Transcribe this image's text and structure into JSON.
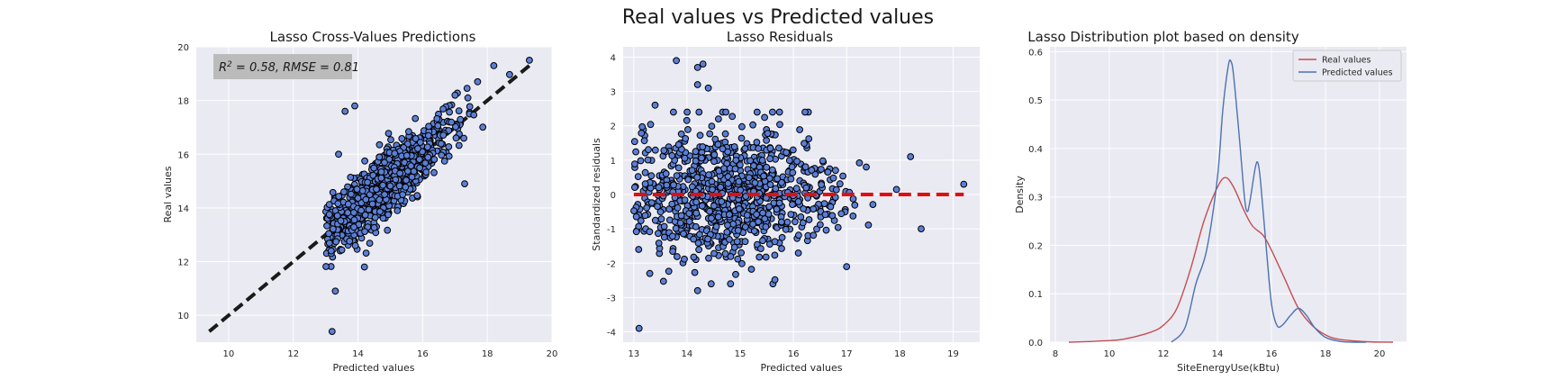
{
  "figure": {
    "suptitle": "Real values vs Predicted values"
  },
  "chart_data": [
    {
      "type": "scatter",
      "title": "Lasso Cross-Values Predictions",
      "xlabel": "Predicted values",
      "ylabel": "Real values",
      "xlim": [
        9,
        20
      ],
      "ylim": [
        9,
        20
      ],
      "xticks": [
        10,
        12,
        14,
        16,
        18,
        20
      ],
      "yticks": [
        10,
        12,
        14,
        16,
        18,
        20
      ],
      "annotation": {
        "r2_label": "R",
        "r2_sup": "2",
        "text": " = 0.58, RMSE = 0.81"
      },
      "reference_line": {
        "from": [
          9.4,
          9.4
        ],
        "to": [
          19.3,
          19.3
        ],
        "color": "#1a1a1a",
        "style": "dashed"
      },
      "point_cloud": {
        "n": 900,
        "x_center": 14.9,
        "x_sd": 0.95,
        "x_min": 13.0,
        "x_max": 19.3,
        "slope": 1.0,
        "noise_sd": 0.8
      },
      "points": [
        [
          13.2,
          9.4
        ],
        [
          18.2,
          19.3
        ],
        [
          19.3,
          19.5
        ],
        [
          17.7,
          18.7
        ],
        [
          17.3,
          14.9
        ],
        [
          13.4,
          16.0
        ],
        [
          13.6,
          17.6
        ],
        [
          13.9,
          17.8
        ],
        [
          14.2,
          11.8
        ],
        [
          13.3,
          10.9
        ],
        [
          17.0,
          18.2
        ],
        [
          17.4,
          18.1
        ]
      ],
      "grid": true
    },
    {
      "type": "scatter",
      "title": "Lasso Residuals",
      "xlabel": "Predicted values",
      "ylabel": "Standardized residuals",
      "xlim": [
        12.8,
        19.5
      ],
      "ylim": [
        -4.3,
        4.3
      ],
      "xticks": [
        13,
        14,
        15,
        16,
        17,
        18,
        19
      ],
      "yticks": [
        -4,
        -3,
        -2,
        -1,
        0,
        1,
        2,
        3,
        4
      ],
      "reference_line": {
        "from": [
          13.0,
          0
        ],
        "to": [
          19.2,
          0
        ],
        "color": "#e01010",
        "style": "dashed"
      },
      "point_cloud": {
        "n": 900,
        "x_center": 14.9,
        "x_sd": 0.95,
        "x_min": 13.0,
        "x_max": 19.2,
        "y_sd": 0.95
      },
      "points": [
        [
          13.1,
          -3.9
        ],
        [
          13.8,
          3.9
        ],
        [
          14.2,
          3.7
        ],
        [
          14.2,
          3.2
        ],
        [
          14.4,
          3.1
        ],
        [
          13.4,
          2.6
        ],
        [
          14.3,
          3.8
        ],
        [
          17.0,
          -2.1
        ],
        [
          19.2,
          0.3
        ],
        [
          18.2,
          1.1
        ],
        [
          18.4,
          -1.0
        ],
        [
          13.3,
          -2.3
        ],
        [
          14.2,
          -2.8
        ]
      ],
      "grid": true
    },
    {
      "type": "line",
      "title": "Lasso Distribution plot based on density",
      "xlabel": "SiteEnergyUse(kBtu)",
      "ylabel": "Density",
      "xlim": [
        7.8,
        21.0
      ],
      "ylim": [
        0,
        0.61
      ],
      "xticks": [
        8,
        10,
        12,
        14,
        16,
        18,
        20
      ],
      "yticks": [
        0.0,
        0.1,
        0.2,
        0.3,
        0.4,
        0.5,
        0.6
      ],
      "legend": "top-right",
      "series": [
        {
          "name": "Real values",
          "color": "#c44e52",
          "x": [
            8.5,
            9.5,
            10.5,
            11.5,
            12.0,
            12.5,
            13.0,
            13.5,
            14.0,
            14.3,
            14.6,
            15.0,
            15.3,
            15.7,
            16.0,
            16.5,
            17.0,
            17.5,
            18.0,
            18.5,
            19.5,
            20.5
          ],
          "values": [
            0.0,
            0.002,
            0.006,
            0.02,
            0.035,
            0.07,
            0.15,
            0.25,
            0.32,
            0.34,
            0.32,
            0.27,
            0.24,
            0.22,
            0.19,
            0.13,
            0.07,
            0.035,
            0.015,
            0.006,
            0.001,
            0.0
          ]
        },
        {
          "name": "Predicted values",
          "color": "#4c72b0",
          "x": [
            12.3,
            12.8,
            13.2,
            13.6,
            14.0,
            14.2,
            14.4,
            14.5,
            14.6,
            14.8,
            15.0,
            15.1,
            15.2,
            15.4,
            15.5,
            15.6,
            15.8,
            16.0,
            16.2,
            16.4,
            16.7,
            17.0,
            17.3,
            17.6,
            18.0,
            18.5,
            19.0,
            19.5
          ],
          "values": [
            0.0,
            0.03,
            0.12,
            0.19,
            0.34,
            0.48,
            0.57,
            0.58,
            0.55,
            0.43,
            0.3,
            0.27,
            0.29,
            0.36,
            0.37,
            0.33,
            0.2,
            0.08,
            0.035,
            0.035,
            0.055,
            0.07,
            0.055,
            0.03,
            0.01,
            0.002,
            0.0,
            0.0
          ]
        }
      ],
      "grid": true
    }
  ]
}
